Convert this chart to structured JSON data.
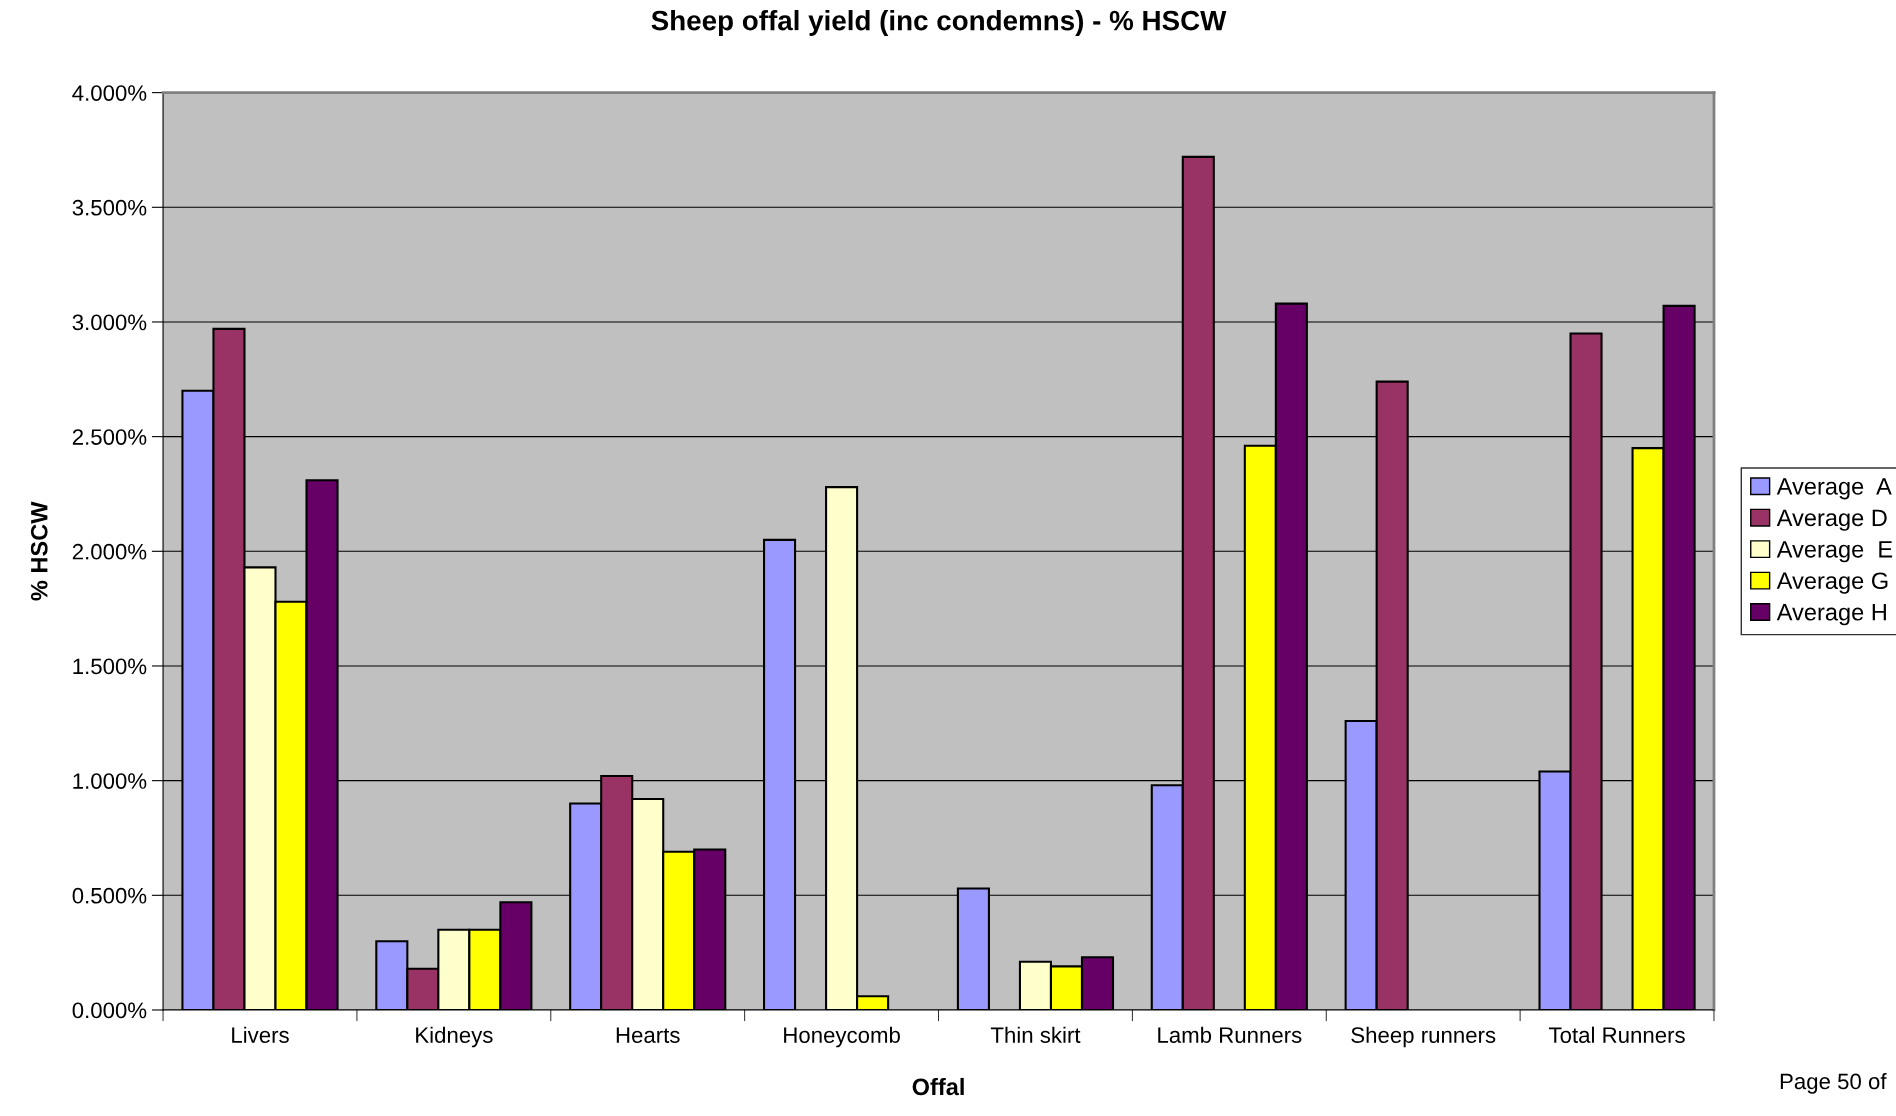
{
  "chart_data": {
    "type": "bar",
    "title": "Sheep offal yield (inc condemns) - % HSCW",
    "xlabel": "Offal",
    "ylabel": "% HSCW",
    "categories": [
      "Livers",
      "Kidneys",
      "Hearts",
      "Honeycomb",
      "Thin skirt",
      "Lamb Runners",
      "Sheep runners",
      "Total Runners"
    ],
    "series": [
      {
        "name": "Average  A",
        "color": "#9999ff",
        "values": [
          2.7,
          0.3,
          0.9,
          2.05,
          0.53,
          0.98,
          1.26,
          1.04
        ]
      },
      {
        "name": "Average D",
        "color": "#993366",
        "values": [
          2.97,
          0.18,
          1.02,
          null,
          null,
          3.72,
          2.74,
          2.95
        ]
      },
      {
        "name": "Average  E",
        "color": "#ffffcc",
        "values": [
          1.93,
          0.35,
          0.92,
          2.28,
          0.21,
          null,
          null,
          null
        ]
      },
      {
        "name": "Average G",
        "color": "#ffff00",
        "values": [
          1.78,
          0.35,
          0.69,
          0.06,
          0.19,
          2.46,
          null,
          2.45
        ]
      },
      {
        "name": "Average H",
        "color": "#660066",
        "values": [
          2.31,
          0.47,
          0.7,
          null,
          0.23,
          3.08,
          null,
          3.07
        ]
      }
    ],
    "ylim": [
      0,
      4
    ],
    "yticks": [
      {
        "value": 0,
        "label": "0.000%"
      },
      {
        "value": 0.5,
        "label": "0.500%"
      },
      {
        "value": 1,
        "label": "1.000%"
      },
      {
        "value": 1.5,
        "label": "1.500%"
      },
      {
        "value": 2,
        "label": "2.000%"
      },
      {
        "value": 2.5,
        "label": "2.500%"
      },
      {
        "value": 3,
        "label": "3.000%"
      },
      {
        "value": 3.5,
        "label": "3.500%"
      },
      {
        "value": 4,
        "label": "4.000%"
      }
    ],
    "grid": "y",
    "legend": "right",
    "annotations": [
      "Page 50 of"
    ]
  }
}
